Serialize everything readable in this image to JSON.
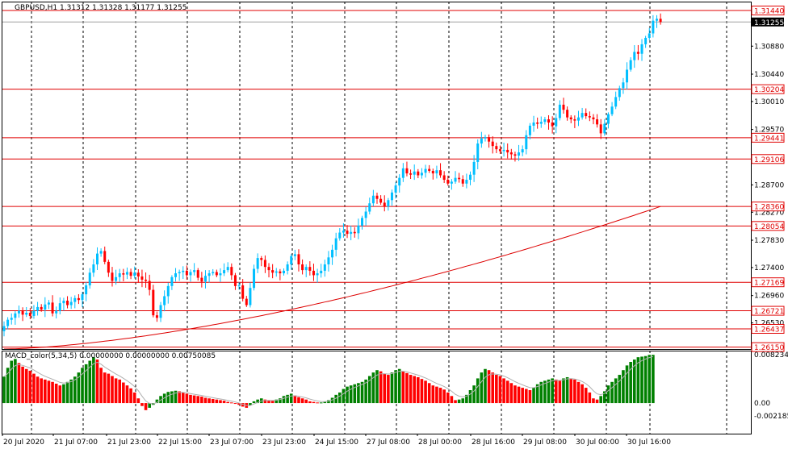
{
  "header": {
    "symbol_info": "GBPUSD,H1  1.31312 1.31328 1.31177 1.31255"
  },
  "macd_panel": {
    "title": "MACD_color(5,34,5) 0.00000000 0.00000000 0.00750085",
    "scale_labels": [
      "0.0082342",
      "0.00",
      "-0.002185"
    ],
    "histogram": [
      0.0045,
      0.006,
      0.0072,
      0.0075,
      0.0068,
      0.0062,
      0.0058,
      0.0055,
      0.005,
      0.0045,
      0.0042,
      0.004,
      0.0038,
      0.0036,
      0.0033,
      0.003,
      0.0032,
      0.0036,
      0.004,
      0.0045,
      0.0052,
      0.006,
      0.0066,
      0.0072,
      0.0078,
      0.0074,
      0.006,
      0.0052,
      0.005,
      0.0046,
      0.0042,
      0.004,
      0.0035,
      0.003,
      0.0025,
      0.0018,
      0.0008,
      -0.0005,
      -0.0012,
      -0.0008,
      -0.0003,
      0.0006,
      0.0012,
      0.0016,
      0.0019,
      0.002,
      0.0021,
      0.002,
      0.0018,
      0.0016,
      0.0014,
      0.0013,
      0.0012,
      0.0011,
      0.0009,
      0.0008,
      0.0007,
      0.0006,
      0.0005,
      0.0004,
      0.0002,
      0.0001,
      -0.0001,
      -0.0003,
      -0.0006,
      -0.0008,
      -0.0004,
      0.0003,
      0.0006,
      0.0008,
      0.0006,
      0.0005,
      0.0004,
      0.0006,
      0.0008,
      0.0012,
      0.0014,
      0.0016,
      0.0013,
      0.001,
      0.0008,
      0.0006,
      0.0003,
      0.0002,
      0.0001,
      0.0001,
      0.0002,
      0.0005,
      0.0009,
      0.0014,
      0.0018,
      0.0024,
      0.0028,
      0.003,
      0.0032,
      0.0034,
      0.0036,
      0.004,
      0.0046,
      0.0052,
      0.0056,
      0.0054,
      0.005,
      0.0048,
      0.0052,
      0.0056,
      0.0058,
      0.0054,
      0.0051,
      0.0048,
      0.0046,
      0.0044,
      0.0041,
      0.0038,
      0.0034,
      0.003,
      0.0028,
      0.0026,
      0.0023,
      0.0018,
      0.0012,
      0.0005,
      0.0006,
      0.0008,
      0.0014,
      0.0022,
      0.003,
      0.0042,
      0.0052,
      0.0058,
      0.0056,
      0.0052,
      0.0048,
      0.0046,
      0.0042,
      0.0038,
      0.0034,
      0.003,
      0.0028,
      0.0026,
      0.0024,
      0.0022,
      0.0026,
      0.0032,
      0.0036,
      0.0038,
      0.004,
      0.0042,
      0.004,
      0.0038,
      0.0042,
      0.0044,
      0.0042,
      0.004,
      0.0036,
      0.0032,
      0.0026,
      0.0018,
      0.0008,
      0.0006,
      0.0012,
      0.002,
      0.003,
      0.0036,
      0.0042,
      0.0048,
      0.0056,
      0.0064,
      0.007,
      0.0074,
      0.0078,
      0.0079,
      0.008,
      0.0082,
      0.0082
    ]
  },
  "price_axis": {
    "labels": [
      {
        "text": "1.30880",
        "value": 1.3088
      },
      {
        "text": "1.30440",
        "value": 1.3044
      },
      {
        "text": "1.30010",
        "value": 1.3001
      },
      {
        "text": "1.29570",
        "value": 1.2957
      },
      {
        "text": "1.28700",
        "value": 1.287
      },
      {
        "text": "1.28270",
        "value": 1.2827
      },
      {
        "text": "1.27830",
        "value": 1.2783
      },
      {
        "text": "1.27400",
        "value": 1.274
      },
      {
        "text": "1.26960",
        "value": 1.2696
      },
      {
        "text": "1.26530",
        "value": 1.2653
      }
    ],
    "current_price_label": "1.31255",
    "range": [
      1.2612,
      1.3158
    ]
  },
  "levels": [
    {
      "label": "1.31440",
      "value": 1.3144
    },
    {
      "label": "1.30204",
      "value": 1.30204
    },
    {
      "label": "1.29441",
      "value": 1.29441
    },
    {
      "label": "1.29106",
      "value": 1.29106
    },
    {
      "label": "1.28360",
      "value": 1.2836
    },
    {
      "label": "1.28054",
      "value": 1.28054
    },
    {
      "label": "1.27169",
      "value": 1.27169
    },
    {
      "label": "1.26721",
      "value": 1.26721
    },
    {
      "label": "1.26437",
      "value": 1.26437
    },
    {
      "label": "1.26150",
      "value": 1.2615
    }
  ],
  "time_axis": {
    "labels": [
      "20 Jul 2020",
      "21 Jul 07:00",
      "21 Jul 23:00",
      "22 Jul 15:00",
      "23 Jul 07:00",
      "23 Jul 23:00",
      "24 Jul 15:00",
      "27 Jul 08:00",
      "28 Jul 00:00",
      "28 Jul 16:00",
      "29 Jul 08:00",
      "30 Jul 00:00",
      "30 Jul 16:00"
    ]
  },
  "colors": {
    "bull": "#00bfff",
    "bear": "#ff0000",
    "level_line": "#e00000",
    "ma_line": "#dd0000",
    "macd_up": "#008000",
    "macd_down": "#ff0000",
    "grid": "#000000",
    "frame": "#000000"
  },
  "chart_data": {
    "type": "line",
    "title": "GBPUSD,H1",
    "series": [
      {
        "name": "",
        "values": [
          1.2648,
          1.2658,
          1.2661,
          1.2668,
          1.2672,
          1.2666,
          1.2669,
          1.2664,
          1.2672,
          1.2678,
          1.2674,
          1.2682,
          1.2685,
          1.2668,
          1.2672,
          1.2684,
          1.2688,
          1.2681,
          1.2686,
          1.2692,
          1.2689,
          1.2698,
          1.2712,
          1.2732,
          1.2745,
          1.2762,
          1.2766,
          1.2749,
          1.2732,
          1.2719,
          1.2725,
          1.2731,
          1.2729,
          1.2733,
          1.2727,
          1.2732,
          1.2726,
          1.2721,
          1.2719,
          1.2705,
          1.2665,
          1.2661,
          1.2681,
          1.2695,
          1.2711,
          1.2725,
          1.2731,
          1.2733,
          1.2735,
          1.2728,
          1.2733,
          1.2736,
          1.2724,
          1.2718,
          1.2727,
          1.2731,
          1.2733,
          1.2728,
          1.2731,
          1.2736,
          1.2741,
          1.2728,
          1.2711,
          1.2712,
          1.2691,
          1.2681,
          1.2708,
          1.2738,
          1.2755,
          1.2752,
          1.2741,
          1.2736,
          1.2732,
          1.2734,
          1.2731,
          1.2735,
          1.2745,
          1.2758,
          1.2761,
          1.2745,
          1.2736,
          1.2741,
          1.2735,
          1.2728,
          1.2731,
          1.2735,
          1.2745,
          1.2756,
          1.2768,
          1.2786,
          1.2795,
          1.2798,
          1.2793,
          1.2796,
          1.2794,
          1.2806,
          1.2818,
          1.2828,
          1.2841,
          1.2853,
          1.2848,
          1.2842,
          1.2836,
          1.2846,
          1.2858,
          1.2869,
          1.2881,
          1.2896,
          1.2888,
          1.2886,
          1.2891,
          1.2885,
          1.2889,
          1.2895,
          1.2892,
          1.2888,
          1.2893,
          1.2885,
          1.2878,
          1.2872,
          1.2875,
          1.2881,
          1.2879,
          1.2872,
          1.2878,
          1.2886,
          1.2906,
          1.2935,
          1.2943,
          1.2945,
          1.2938,
          1.2931,
          1.2926,
          1.2923,
          1.2925,
          1.2921,
          1.2918,
          1.2916,
          1.2921,
          1.2926,
          1.2948,
          1.2963,
          1.2968,
          1.2966,
          1.2969,
          1.2973,
          1.2968,
          1.2962,
          1.2975,
          1.2996,
          1.2988,
          1.2976,
          1.2973,
          1.2971,
          1.2976,
          1.2983,
          1.2978,
          1.2976,
          1.2973,
          1.2965,
          1.2951,
          1.2966,
          1.2981,
          1.2993,
          1.3008,
          1.3022,
          1.3031,
          1.3051,
          1.3066,
          1.3079,
          1.3076,
          1.3091,
          1.3101,
          1.3108,
          1.3128,
          1.3131,
          1.3126
        ]
      }
    ],
    "ylim": [
      1.2612,
      1.3158
    ]
  }
}
